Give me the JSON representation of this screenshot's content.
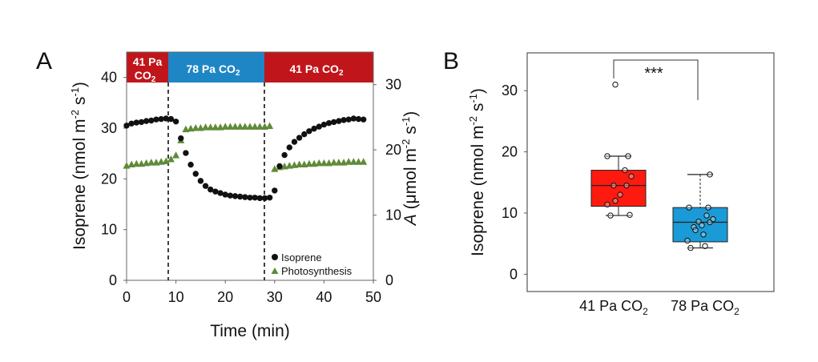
{
  "colors": {
    "red_band": "#c0161b",
    "blue_band": "#1f86c6",
    "isoprene": "#111111",
    "photosynthesis": "#5f8b38",
    "box_41": "#ff1a10",
    "box_78": "#1a9ad6"
  },
  "panel_a": {
    "letter": "A",
    "band_left_line1": "41 Pa",
    "band_left_line2": "CO",
    "band_left_sub": "2",
    "band_mid": "78 Pa CO",
    "band_mid_sub": "2",
    "band_right": "41 Pa CO",
    "band_right_sub": "2",
    "xlabel": "Time (min)",
    "ylabel_left_main": "Isoprene (nmol m",
    "ylabel_left_sup1": "-2",
    "ylabel_left_mid": " s",
    "ylabel_left_sup2": "-1",
    "ylabel_left_end": ")",
    "ylabel_right_italic": "A",
    "ylabel_right_main": " (μmol m",
    "ylabel_right_sup1": "-2",
    "ylabel_right_mid": " s",
    "ylabel_right_sup2": "-1",
    "ylabel_right_end": ")",
    "legend_isoprene": "Isoprene",
    "legend_photosynthesis": "Photosynthesis",
    "xticks": [
      "0",
      "10",
      "20",
      "30",
      "40",
      "50"
    ],
    "yticks_left": [
      "0",
      "10",
      "20",
      "30",
      "40"
    ],
    "yticks_right": [
      "0",
      "10",
      "20",
      "30"
    ]
  },
  "panel_b": {
    "letter": "B",
    "sig": "***",
    "cat1_main": "41 Pa CO",
    "cat1_sub": "2",
    "cat2_main": "78 Pa CO",
    "cat2_sub": "2",
    "ylabel_main": "Isoprene (nmol m",
    "ylabel_sup1": "-2",
    "ylabel_mid": " s",
    "ylabel_sup2": "-1",
    "ylabel_end": ")",
    "yticks": [
      "0",
      "10",
      "20",
      "30"
    ]
  },
  "chart_data": [
    {
      "type": "scatter",
      "panel": "A",
      "xlabel": "Time (min)",
      "ylabel": "Isoprene (nmol m-2 s-1)",
      "ylabel_right": "A (μmol m-2 s-1)",
      "xlim": [
        0,
        50
      ],
      "ylim": [
        0,
        45
      ],
      "ylim_right": [
        0,
        35
      ],
      "grid": false,
      "legend": "bottom-right",
      "vertical_dashed_lines_x": [
        8.3,
        27.7
      ],
      "phases": [
        {
          "label": "41 Pa CO2",
          "x": [
            0,
            8.3
          ]
        },
        {
          "label": "78 Pa CO2",
          "x": [
            8.3,
            27.7
          ]
        },
        {
          "label": "41 Pa CO2",
          "x": [
            27.7,
            50
          ]
        }
      ],
      "series": [
        {
          "name": "Isoprene",
          "axis": "left",
          "marker": "circle",
          "x": [
            0,
            1,
            2,
            3,
            4,
            5,
            6,
            7,
            8,
            9,
            10,
            11,
            12,
            13,
            14,
            15,
            16,
            17,
            18,
            19,
            20,
            21,
            22,
            23,
            24,
            25,
            26,
            27,
            28,
            29,
            30,
            31,
            32,
            33,
            34,
            35,
            36,
            37,
            38,
            39,
            40,
            41,
            42,
            43,
            44,
            45,
            46,
            47,
            48
          ],
          "y": [
            30.5,
            30.9,
            31.1,
            31.2,
            31.4,
            31.5,
            31.7,
            31.8,
            31.9,
            31.8,
            31.3,
            28.0,
            25.1,
            22.8,
            21.0,
            19.6,
            18.6,
            17.9,
            17.5,
            17.2,
            16.9,
            16.7,
            16.6,
            16.5,
            16.4,
            16.3,
            16.3,
            16.2,
            16.2,
            16.3,
            17.7,
            22.5,
            24.7,
            26.2,
            27.3,
            28.1,
            28.8,
            29.4,
            29.9,
            30.3,
            30.7,
            31.0,
            31.2,
            31.4,
            31.6,
            31.7,
            31.9,
            31.8,
            31.7
          ]
        },
        {
          "name": "Photosynthesis",
          "axis": "right",
          "marker": "triangle",
          "x": [
            0,
            1,
            2,
            3,
            4,
            5,
            6,
            7,
            8,
            9,
            10,
            11,
            12,
            13,
            14,
            15,
            16,
            17,
            18,
            19,
            20,
            21,
            22,
            23,
            24,
            25,
            26,
            27,
            28,
            29,
            30,
            31,
            32,
            33,
            34,
            35,
            36,
            37,
            38,
            39,
            40,
            41,
            42,
            43,
            44,
            45,
            46,
            47,
            48
          ],
          "y": [
            17.6,
            17.8,
            17.9,
            17.9,
            18.0,
            18.1,
            18.1,
            18.2,
            18.3,
            18.6,
            19.2,
            21.5,
            23.2,
            23.3,
            23.4,
            23.4,
            23.5,
            23.5,
            23.5,
            23.5,
            23.6,
            23.6,
            23.6,
            23.6,
            23.6,
            23.6,
            23.6,
            23.6,
            23.6,
            23.7,
            17.1,
            17.4,
            17.5,
            17.6,
            17.7,
            17.8,
            17.8,
            17.9,
            17.9,
            18.0,
            18.0,
            18.0,
            18.1,
            18.1,
            18.1,
            18.2,
            18.2,
            18.2,
            18.2
          ]
        }
      ]
    },
    {
      "type": "box",
      "panel": "B",
      "ylabel": "Isoprene (nmol m-2 s-1)",
      "ylim": [
        -2,
        36
      ],
      "categories": [
        "41 Pa CO2",
        "78 Pa CO2"
      ],
      "significance": "***",
      "boxes": [
        {
          "category": "41 Pa CO2",
          "whisker_low": 9.6,
          "q1": 11.1,
          "median": 14.5,
          "q3": 17.0,
          "whisker_high": 19.3,
          "outliers": [
            31.0
          ],
          "points": [
            9.6,
            9.7,
            11.4,
            14.5,
            14.5,
            16.0,
            17.0,
            19.3,
            19.3,
            13.0,
            12.0,
            31.0
          ]
        },
        {
          "category": "78 Pa CO2",
          "whisker_low": 4.3,
          "q1": 5.3,
          "median": 8.5,
          "q3": 10.9,
          "whisker_high": 16.3,
          "outliers": [],
          "points": [
            4.3,
            4.6,
            5.5,
            6.5,
            7.7,
            8.5,
            8.6,
            9.0,
            10.9,
            10.9,
            16.3,
            8.0,
            7.2,
            9.6
          ]
        }
      ]
    }
  ]
}
